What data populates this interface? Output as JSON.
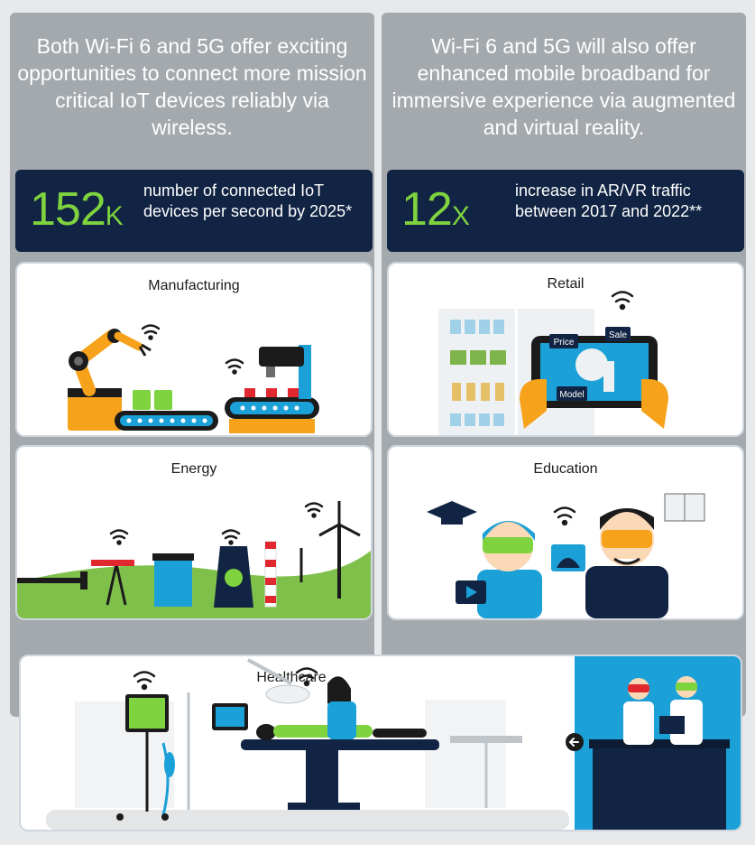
{
  "left_intro": "Both Wi-Fi 6 and 5G offer exciting opportunities to connect more mission critical IoT devices reliably via wireless.",
  "right_intro": "Wi-Fi 6 and 5G will also offer enhanced mobile broadband for immersive experience via augmented and virtual reality.",
  "left_stat": {
    "number": "152",
    "unit": "K",
    "description": "number of connected IoT devices per second by 2025*"
  },
  "right_stat": {
    "number": "12",
    "unit": "X",
    "description": "increase in AR/VR traffic between 2017 and 2022**"
  },
  "cards": {
    "manufacturing": "Manufacturing",
    "retail": "Retail",
    "energy": "Energy",
    "education": "Education",
    "healthcare": "Healthcare"
  },
  "retail_tags": {
    "price": "Price",
    "sale": "Sale",
    "model": "Model"
  },
  "colors": {
    "navy": "#112443",
    "green": "#7fd33f",
    "blue": "#1ba0d7",
    "orange": "#f7a21b",
    "panel_gray": "#a4a9ae"
  },
  "icons": [
    "wifi-icon",
    "arrow-left-icon",
    "play-icon"
  ]
}
